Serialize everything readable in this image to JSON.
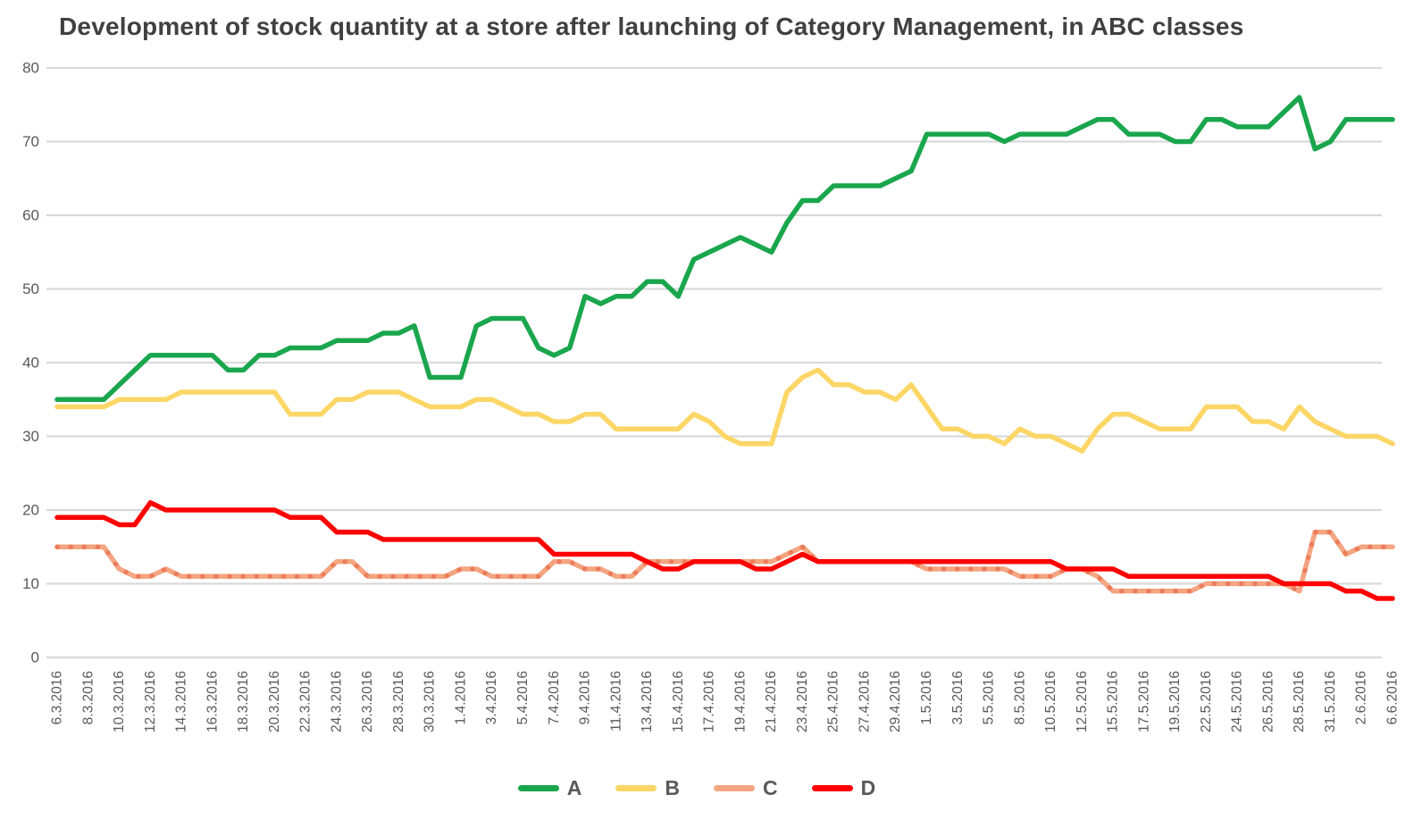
{
  "chart_data": {
    "type": "line",
    "title": "Development of stock quantity at a store after launching of Category Management, in ABC classes",
    "xlabel": "",
    "ylabel": "",
    "ylim": [
      0,
      80
    ],
    "y_ticks": [
      0,
      10,
      20,
      30,
      40,
      50,
      60,
      70,
      80
    ],
    "grid": "horizontal",
    "gridline_color": "#D9D9D9",
    "axis_text_color": "#595959",
    "legend_position": "bottom",
    "points_per_label": 2,
    "x_labels": [
      "6.3.2016",
      "8.3.2016",
      "10.3.2016",
      "12.3.2016",
      "14.3.2016",
      "16.3.2016",
      "18.3.2016",
      "20.3.2016",
      "22.3.2016",
      "24.3.2016",
      "26.3.2016",
      "28.3.2016",
      "30.3.2016",
      "1.4.2016",
      "3.4.2016",
      "5.4.2016",
      "7.4.2016",
      "9.4.2016",
      "11.4.2016",
      "13.4.2016",
      "15.4.2016",
      "17.4.2016",
      "19.4.2016",
      "21.4.2016",
      "23.4.2016",
      "25.4.2016",
      "27.4.2016",
      "29.4.2016",
      "1.5.2016",
      "3.5.2016",
      "5.5.2016",
      "8.5.2016",
      "10.5.2016",
      "12.5.2016",
      "15.5.2016",
      "17.5.2016",
      "19.5.2016",
      "22.5.2016",
      "24.5.2016",
      "26.5.2016",
      "28.5.2016",
      "31.5.2016",
      "2.6.2016",
      "6.6.2016"
    ],
    "series": [
      {
        "name": "A",
        "color": "#1AA64D",
        "style": "solid",
        "values": [
          35,
          35,
          35,
          35,
          37,
          39,
          41,
          41,
          41,
          41,
          41,
          39,
          39,
          41,
          41,
          42,
          42,
          42,
          43,
          43,
          43,
          44,
          44,
          45,
          38,
          38,
          38,
          45,
          46,
          46,
          46,
          42,
          41,
          42,
          49,
          48,
          49,
          49,
          51,
          51,
          49,
          54,
          55,
          56,
          57,
          56,
          55,
          59,
          62,
          62,
          64,
          64,
          64,
          64,
          65,
          66,
          71,
          71,
          71,
          71,
          71,
          70,
          71,
          71,
          71,
          71,
          72,
          73,
          73,
          71,
          71,
          71,
          70,
          70,
          73,
          73,
          72,
          72,
          72,
          74,
          76,
          69,
          70,
          73,
          73,
          73,
          73
        ]
      },
      {
        "name": "B",
        "color": "#FCD666",
        "style": "solid",
        "values": [
          34,
          34,
          34,
          34,
          35,
          35,
          35,
          35,
          36,
          36,
          36,
          36,
          36,
          36,
          36,
          33,
          33,
          33,
          35,
          35,
          36,
          36,
          36,
          35,
          34,
          34,
          34,
          35,
          35,
          34,
          33,
          33,
          32,
          32,
          33,
          33,
          31,
          31,
          31,
          31,
          31,
          33,
          32,
          30,
          29,
          29,
          29,
          36,
          38,
          39,
          37,
          37,
          36,
          36,
          35,
          37,
          34,
          31,
          31,
          30,
          30,
          29,
          31,
          30,
          30,
          29,
          28,
          31,
          33,
          33,
          32,
          31,
          31,
          31,
          34,
          34,
          34,
          32,
          32,
          31,
          34,
          32,
          31,
          30,
          30,
          30,
          29
        ]
      },
      {
        "name": "C",
        "color": "#F4A582",
        "dot_color": "#EC7D5A",
        "style": "dotted",
        "values": [
          15,
          15,
          15,
          15,
          12,
          11,
          11,
          12,
          11,
          11,
          11,
          11,
          11,
          11,
          11,
          11,
          11,
          11,
          13,
          13,
          11,
          11,
          11,
          11,
          11,
          11,
          12,
          12,
          11,
          11,
          11,
          11,
          13,
          13,
          12,
          12,
          11,
          11,
          13,
          13,
          13,
          13,
          13,
          13,
          13,
          13,
          13,
          14,
          15,
          13,
          13,
          13,
          13,
          13,
          13,
          13,
          12,
          12,
          12,
          12,
          12,
          12,
          11,
          11,
          11,
          12,
          12,
          11,
          9,
          9,
          9,
          9,
          9,
          9,
          10,
          10,
          10,
          10,
          10,
          10,
          9,
          17,
          17,
          14,
          15,
          15,
          15
        ]
      },
      {
        "name": "D",
        "color": "#FF0000",
        "style": "solid",
        "values": [
          19,
          19,
          19,
          19,
          18,
          18,
          21,
          20,
          20,
          20,
          20,
          20,
          20,
          20,
          20,
          19,
          19,
          19,
          17,
          17,
          17,
          16,
          16,
          16,
          16,
          16,
          16,
          16,
          16,
          16,
          16,
          16,
          14,
          14,
          14,
          14,
          14,
          14,
          13,
          12,
          12,
          13,
          13,
          13,
          13,
          12,
          12,
          13,
          14,
          13,
          13,
          13,
          13,
          13,
          13,
          13,
          13,
          13,
          13,
          13,
          13,
          13,
          13,
          13,
          13,
          12,
          12,
          12,
          12,
          11,
          11,
          11,
          11,
          11,
          11,
          11,
          11,
          11,
          11,
          10,
          10,
          10,
          10,
          9,
          9,
          8,
          8
        ]
      }
    ]
  }
}
